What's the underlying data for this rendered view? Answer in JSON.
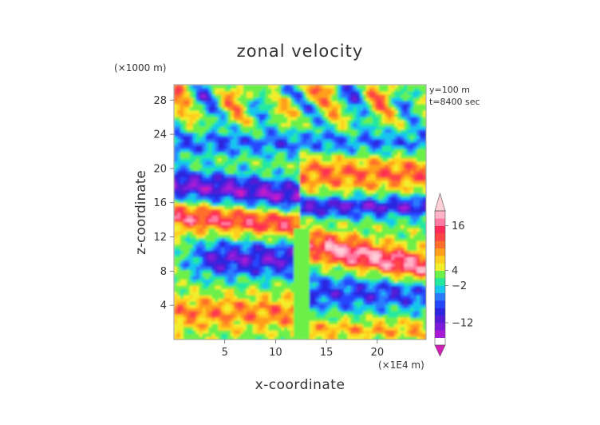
{
  "chart_data": {
    "type": "heatmap",
    "title": "zonal velocity",
    "xlabel": "x-coordinate",
    "ylabel": "z-coordinate",
    "x_unit": "(×1E4 m)",
    "y_unit": "(×1000 m)",
    "annotations": [
      "y=100 m",
      "t=8400 sec"
    ],
    "x_ticks": [
      5,
      10,
      15,
      20
    ],
    "y_ticks": [
      4,
      8,
      12,
      16,
      20,
      24,
      28
    ],
    "xlim": [
      0,
      24.8
    ],
    "ylim": [
      0,
      29.8
    ],
    "colorbar": {
      "tick_labels": [
        "16",
        "4",
        "−2",
        "−12"
      ],
      "tick_values": [
        16,
        4,
        -2,
        -12
      ],
      "levels": [
        -18,
        -16,
        -14,
        -12,
        -10,
        -8,
        -6,
        -4,
        -2,
        2,
        4,
        6,
        8,
        10,
        12,
        14,
        16,
        18
      ],
      "colors": [
        "#d21fb8",
        "#a81ad6",
        "#7d1bdb",
        "#551bd6",
        "#2b25e0",
        "#2546ff",
        "#2a7bff",
        "#19c6ee",
        "#22e8a0",
        "#6cf04a",
        "#f2ee2c",
        "#ffcf1f",
        "#ff9f1b",
        "#ff6e2a",
        "#ff4444",
        "#ff2a55",
        "#ff7aa3",
        "#ffb3c6",
        "#ffcfd8"
      ],
      "extend": "both"
    }
  }
}
